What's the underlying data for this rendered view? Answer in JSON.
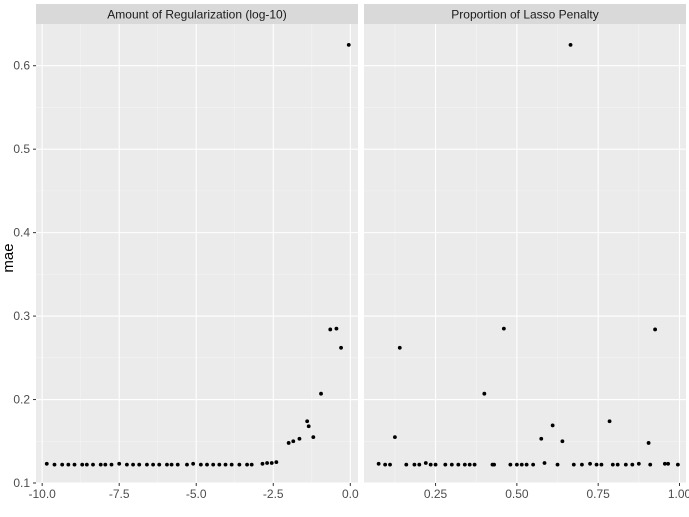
{
  "chart_data": {
    "type": "scatter",
    "facet_layout": "1x2",
    "ylabel": "mae",
    "xlabel": "",
    "ylim": [
      0.1,
      0.65
    ],
    "y_ticks": [
      0.1,
      0.2,
      0.3,
      0.4,
      0.5,
      0.6
    ],
    "y_tick_labels": [
      "0.1",
      "0.2",
      "0.3",
      "0.4",
      "0.5",
      "0.6"
    ],
    "grid": true,
    "legend": "none",
    "colors": {
      "point": "#000000",
      "panel_background": "#ebebeb",
      "strip_background": "#d9d9d9",
      "grid": "#ffffff"
    },
    "panels": [
      {
        "title": "Amount of Regularization (log-10)",
        "xlim": [
          -10.2,
          0.25
        ],
        "x_ticks": [
          -10,
          -7.5,
          -5,
          -2.5,
          0
        ],
        "x_tick_labels": [
          "-10.0",
          "-7.5",
          "-5.0",
          "-2.5",
          "0.0"
        ],
        "points": [
          [
            -9.85,
            0.123
          ],
          [
            -9.6,
            0.122
          ],
          [
            -9.35,
            0.122
          ],
          [
            -9.15,
            0.122
          ],
          [
            -8.95,
            0.122
          ],
          [
            -8.7,
            0.122
          ],
          [
            -8.55,
            0.122
          ],
          [
            -8.35,
            0.122
          ],
          [
            -8.1,
            0.122
          ],
          [
            -7.95,
            0.122
          ],
          [
            -7.75,
            0.122
          ],
          [
            -7.5,
            0.123
          ],
          [
            -7.25,
            0.122
          ],
          [
            -7.05,
            0.122
          ],
          [
            -6.85,
            0.122
          ],
          [
            -6.6,
            0.122
          ],
          [
            -6.4,
            0.122
          ],
          [
            -6.2,
            0.122
          ],
          [
            -5.95,
            0.122
          ],
          [
            -5.8,
            0.122
          ],
          [
            -5.6,
            0.122
          ],
          [
            -5.3,
            0.122
          ],
          [
            -5.1,
            0.123
          ],
          [
            -4.85,
            0.122
          ],
          [
            -4.65,
            0.122
          ],
          [
            -4.45,
            0.122
          ],
          [
            -4.25,
            0.122
          ],
          [
            -4.05,
            0.122
          ],
          [
            -3.85,
            0.122
          ],
          [
            -3.6,
            0.122
          ],
          [
            -3.35,
            0.122
          ],
          [
            -3.2,
            0.122
          ],
          [
            -2.85,
            0.123
          ],
          [
            -2.7,
            0.124
          ],
          [
            -2.55,
            0.124
          ],
          [
            -2.4,
            0.125
          ],
          [
            -2.0,
            0.148
          ],
          [
            -1.85,
            0.15
          ],
          [
            -1.65,
            0.153
          ],
          [
            -1.4,
            0.174
          ],
          [
            -1.35,
            0.168
          ],
          [
            -1.2,
            0.155
          ],
          [
            -0.95,
            0.207
          ],
          [
            -0.65,
            0.284
          ],
          [
            -0.45,
            0.285
          ],
          [
            -0.3,
            0.262
          ],
          [
            -0.05,
            0.625
          ]
        ]
      },
      {
        "title": "Proportion of Lasso Penalty",
        "xlim": [
          0.03,
          1.02
        ],
        "x_ticks": [
          0.25,
          0.5,
          0.75,
          1.0
        ],
        "x_tick_labels": [
          "0.25",
          "0.50",
          "0.75",
          "1.00"
        ],
        "points": [
          [
            0.075,
            0.123
          ],
          [
            0.095,
            0.122
          ],
          [
            0.11,
            0.122
          ],
          [
            0.125,
            0.155
          ],
          [
            0.14,
            0.262
          ],
          [
            0.16,
            0.122
          ],
          [
            0.185,
            0.122
          ],
          [
            0.2,
            0.122
          ],
          [
            0.22,
            0.124
          ],
          [
            0.235,
            0.122
          ],
          [
            0.25,
            0.122
          ],
          [
            0.28,
            0.122
          ],
          [
            0.3,
            0.122
          ],
          [
            0.32,
            0.122
          ],
          [
            0.34,
            0.122
          ],
          [
            0.355,
            0.122
          ],
          [
            0.37,
            0.122
          ],
          [
            0.4,
            0.207
          ],
          [
            0.425,
            0.122
          ],
          [
            0.43,
            0.122
          ],
          [
            0.46,
            0.285
          ],
          [
            0.48,
            0.122
          ],
          [
            0.5,
            0.122
          ],
          [
            0.515,
            0.122
          ],
          [
            0.53,
            0.122
          ],
          [
            0.55,
            0.122
          ],
          [
            0.575,
            0.153
          ],
          [
            0.585,
            0.124
          ],
          [
            0.61,
            0.169
          ],
          [
            0.625,
            0.122
          ],
          [
            0.64,
            0.15
          ],
          [
            0.665,
            0.625
          ],
          [
            0.675,
            0.122
          ],
          [
            0.7,
            0.122
          ],
          [
            0.725,
            0.123
          ],
          [
            0.745,
            0.122
          ],
          [
            0.76,
            0.122
          ],
          [
            0.785,
            0.174
          ],
          [
            0.795,
            0.122
          ],
          [
            0.81,
            0.122
          ],
          [
            0.835,
            0.122
          ],
          [
            0.855,
            0.122
          ],
          [
            0.875,
            0.123
          ],
          [
            0.905,
            0.148
          ],
          [
            0.91,
            0.122
          ],
          [
            0.925,
            0.284
          ],
          [
            0.955,
            0.123
          ],
          [
            0.965,
            0.123
          ],
          [
            0.995,
            0.122
          ]
        ]
      }
    ]
  }
}
